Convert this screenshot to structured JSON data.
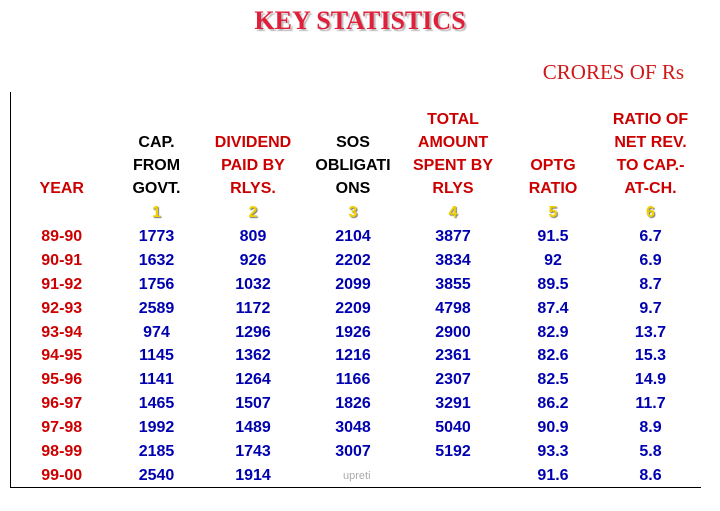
{
  "title": "KEY STATISTICS",
  "subtitle": "CRORES OF Rs",
  "table": {
    "header": [
      [
        "YEAR"
      ],
      [
        "CAP.",
        "FROM",
        "GOVT."
      ],
      [
        "DIVIDEND",
        "PAID BY",
        "RLYS."
      ],
      [
        "SOS",
        "OBLIGATI",
        "ONS"
      ],
      [
        "TOTAL",
        "AMOUNT",
        "SPENT BY",
        "RLYS"
      ],
      [
        "OPTG",
        "RATIO"
      ],
      [
        "RATIO OF",
        "NET REV.",
        "TO CAP.-",
        "AT-CH."
      ]
    ],
    "index": [
      "1",
      "2",
      "3",
      "4",
      "5",
      "6"
    ],
    "rows": [
      [
        "89-90",
        "1773",
        "809",
        "2104",
        "3877",
        "91.5",
        "6.7"
      ],
      [
        "90-91",
        "1632",
        "926",
        "2202",
        "3834",
        "92",
        "6.9"
      ],
      [
        "91-92",
        "1756",
        "1032",
        "2099",
        "3855",
        "89.5",
        "8.7"
      ],
      [
        "92-93",
        "2589",
        "1172",
        "2209",
        "4798",
        "87.4",
        "9.7"
      ],
      [
        "93-94",
        "974",
        "1296",
        "1926",
        "2900",
        "82.9",
        "13.7"
      ],
      [
        "94-95",
        "1145",
        "1362",
        "1216",
        "2361",
        "82.6",
        "15.3"
      ],
      [
        "95-96",
        "1141",
        "1264",
        "1166",
        "2307",
        "82.5",
        "14.9"
      ],
      [
        "96-97",
        "1465",
        "1507",
        "1826",
        "3291",
        "86.2",
        "11.7"
      ],
      [
        "97-98",
        "1992",
        "1489",
        "3048",
        "5040",
        "90.9",
        "8.9"
      ],
      [
        "98-99",
        "2185",
        "1743",
        "3007",
        "5192",
        "93.3",
        "5.8"
      ],
      [
        "99-00",
        "2540",
        "1914",
        "",
        "",
        "91.6",
        "8.6"
      ]
    ]
  },
  "footer": "upreti"
}
